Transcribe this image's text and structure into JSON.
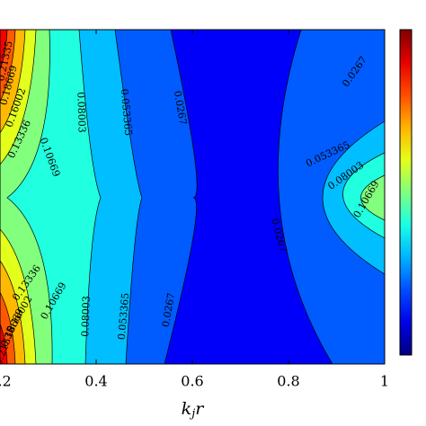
{
  "chart_data": {
    "type": "contour",
    "x_label": {
      "base": "k",
      "sub": "j",
      "tail": "r"
    },
    "levels": [
      0.0267,
      0.053365,
      0.08003,
      0.10669,
      0.13336,
      0.16002,
      0.18669,
      0.21335
    ],
    "xlim": [
      0.2,
      1
    ],
    "xticks": [
      0.2,
      0.4,
      0.6,
      0.8,
      1
    ],
    "colormap": "jet"
  }
}
